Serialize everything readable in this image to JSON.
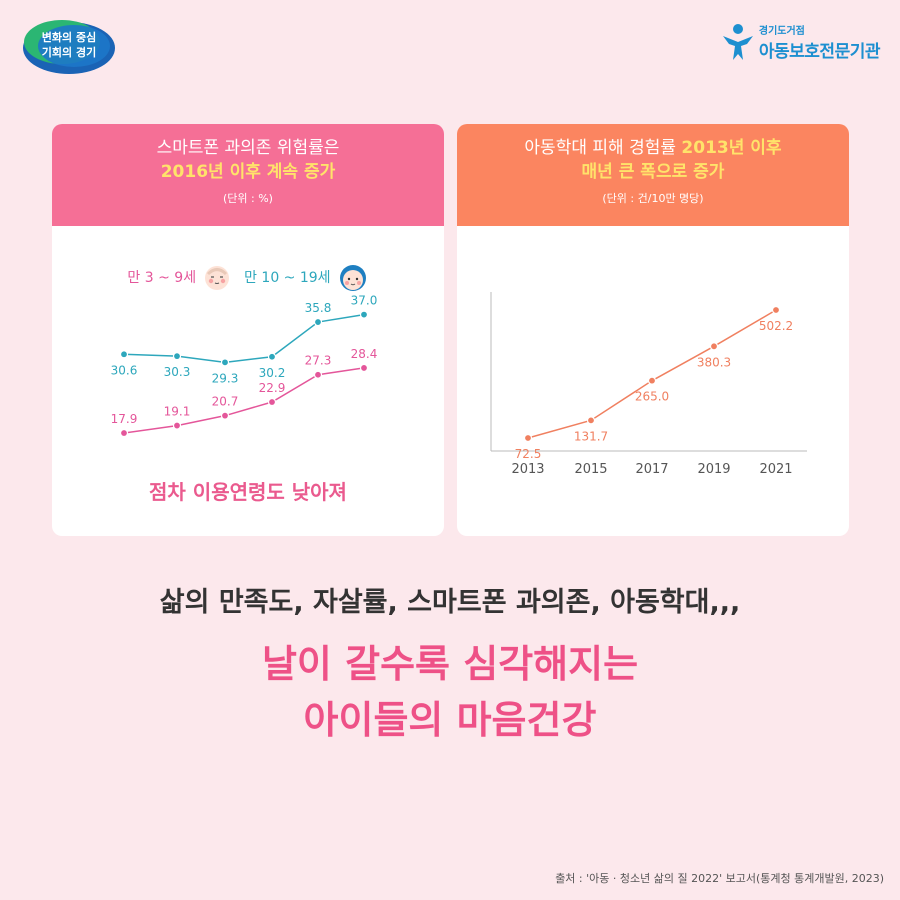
{
  "brand_left": {
    "line1": "변화의 중심",
    "line2": "기회의 경기"
  },
  "brand_right": {
    "small": "경기도거점",
    "big": "아동보호전문기관"
  },
  "left_card": {
    "title_line1": "스마트폰 과의존 위험률은",
    "title_line2": "2016년 이후 계속 증가",
    "unit": "(단위 : %)",
    "conclusion": "점차 이용연령도 낮아져",
    "header_color": "#f56f96"
  },
  "right_card": {
    "title_line1_prefix": "아동학대 피해 경험률 ",
    "title_line1_highlight": "2013년 이후",
    "title_line2": "매년 큰 폭으로 증가",
    "unit": "(단위 : 건/10만 명당)",
    "header_color": "#fb8560"
  },
  "headline": {
    "line1": "삶의 만족도, 자살률, 스마트폰 과의존, 아동학대,,,",
    "line2": "날이 갈수록 심각해지는",
    "line3": "아이들의 마음건강"
  },
  "source": "출처 : '아동 · 청소년 삶의 질 2022' 보고서(통계청 통계개발원, 2023)",
  "chart_data": [
    {
      "type": "line",
      "title": "스마트폰 과의존 위험률은 2016년 이후 계속 증가",
      "series": [
        {
          "name": "만 10 ~ 19세",
          "color": "#2da7bc",
          "icon": "teen-face-icon",
          "values": [
            30.6,
            30.3,
            29.3,
            30.2,
            35.8,
            37.0
          ],
          "labels": [
            "30.6",
            "30.3",
            "29.3",
            "30.2",
            "35.8",
            "37.0"
          ]
        },
        {
          "name": "만 3 ~ 9세",
          "color": "#e4569a",
          "icon": "child-face-icon",
          "values": [
            17.9,
            19.1,
            20.7,
            22.9,
            27.3,
            28.4
          ],
          "labels": [
            "17.9",
            "19.1",
            "20.7",
            "22.9",
            "27.3",
            "28.4"
          ]
        }
      ],
      "grid": false
    },
    {
      "type": "line",
      "title": "아동학대 피해 경험률 2013년 이후 매년 큰 폭으로 증가",
      "x": [
        "2013",
        "2015",
        "2017",
        "2019",
        "2021"
      ],
      "series": [
        {
          "color": "#f08060",
          "values": [
            72.5,
            131.7,
            265.0,
            380.3,
            502.2
          ],
          "labels": [
            "72.5",
            "131.7",
            "265.0",
            "380.3",
            "502.2"
          ]
        }
      ],
      "grid": false
    }
  ]
}
